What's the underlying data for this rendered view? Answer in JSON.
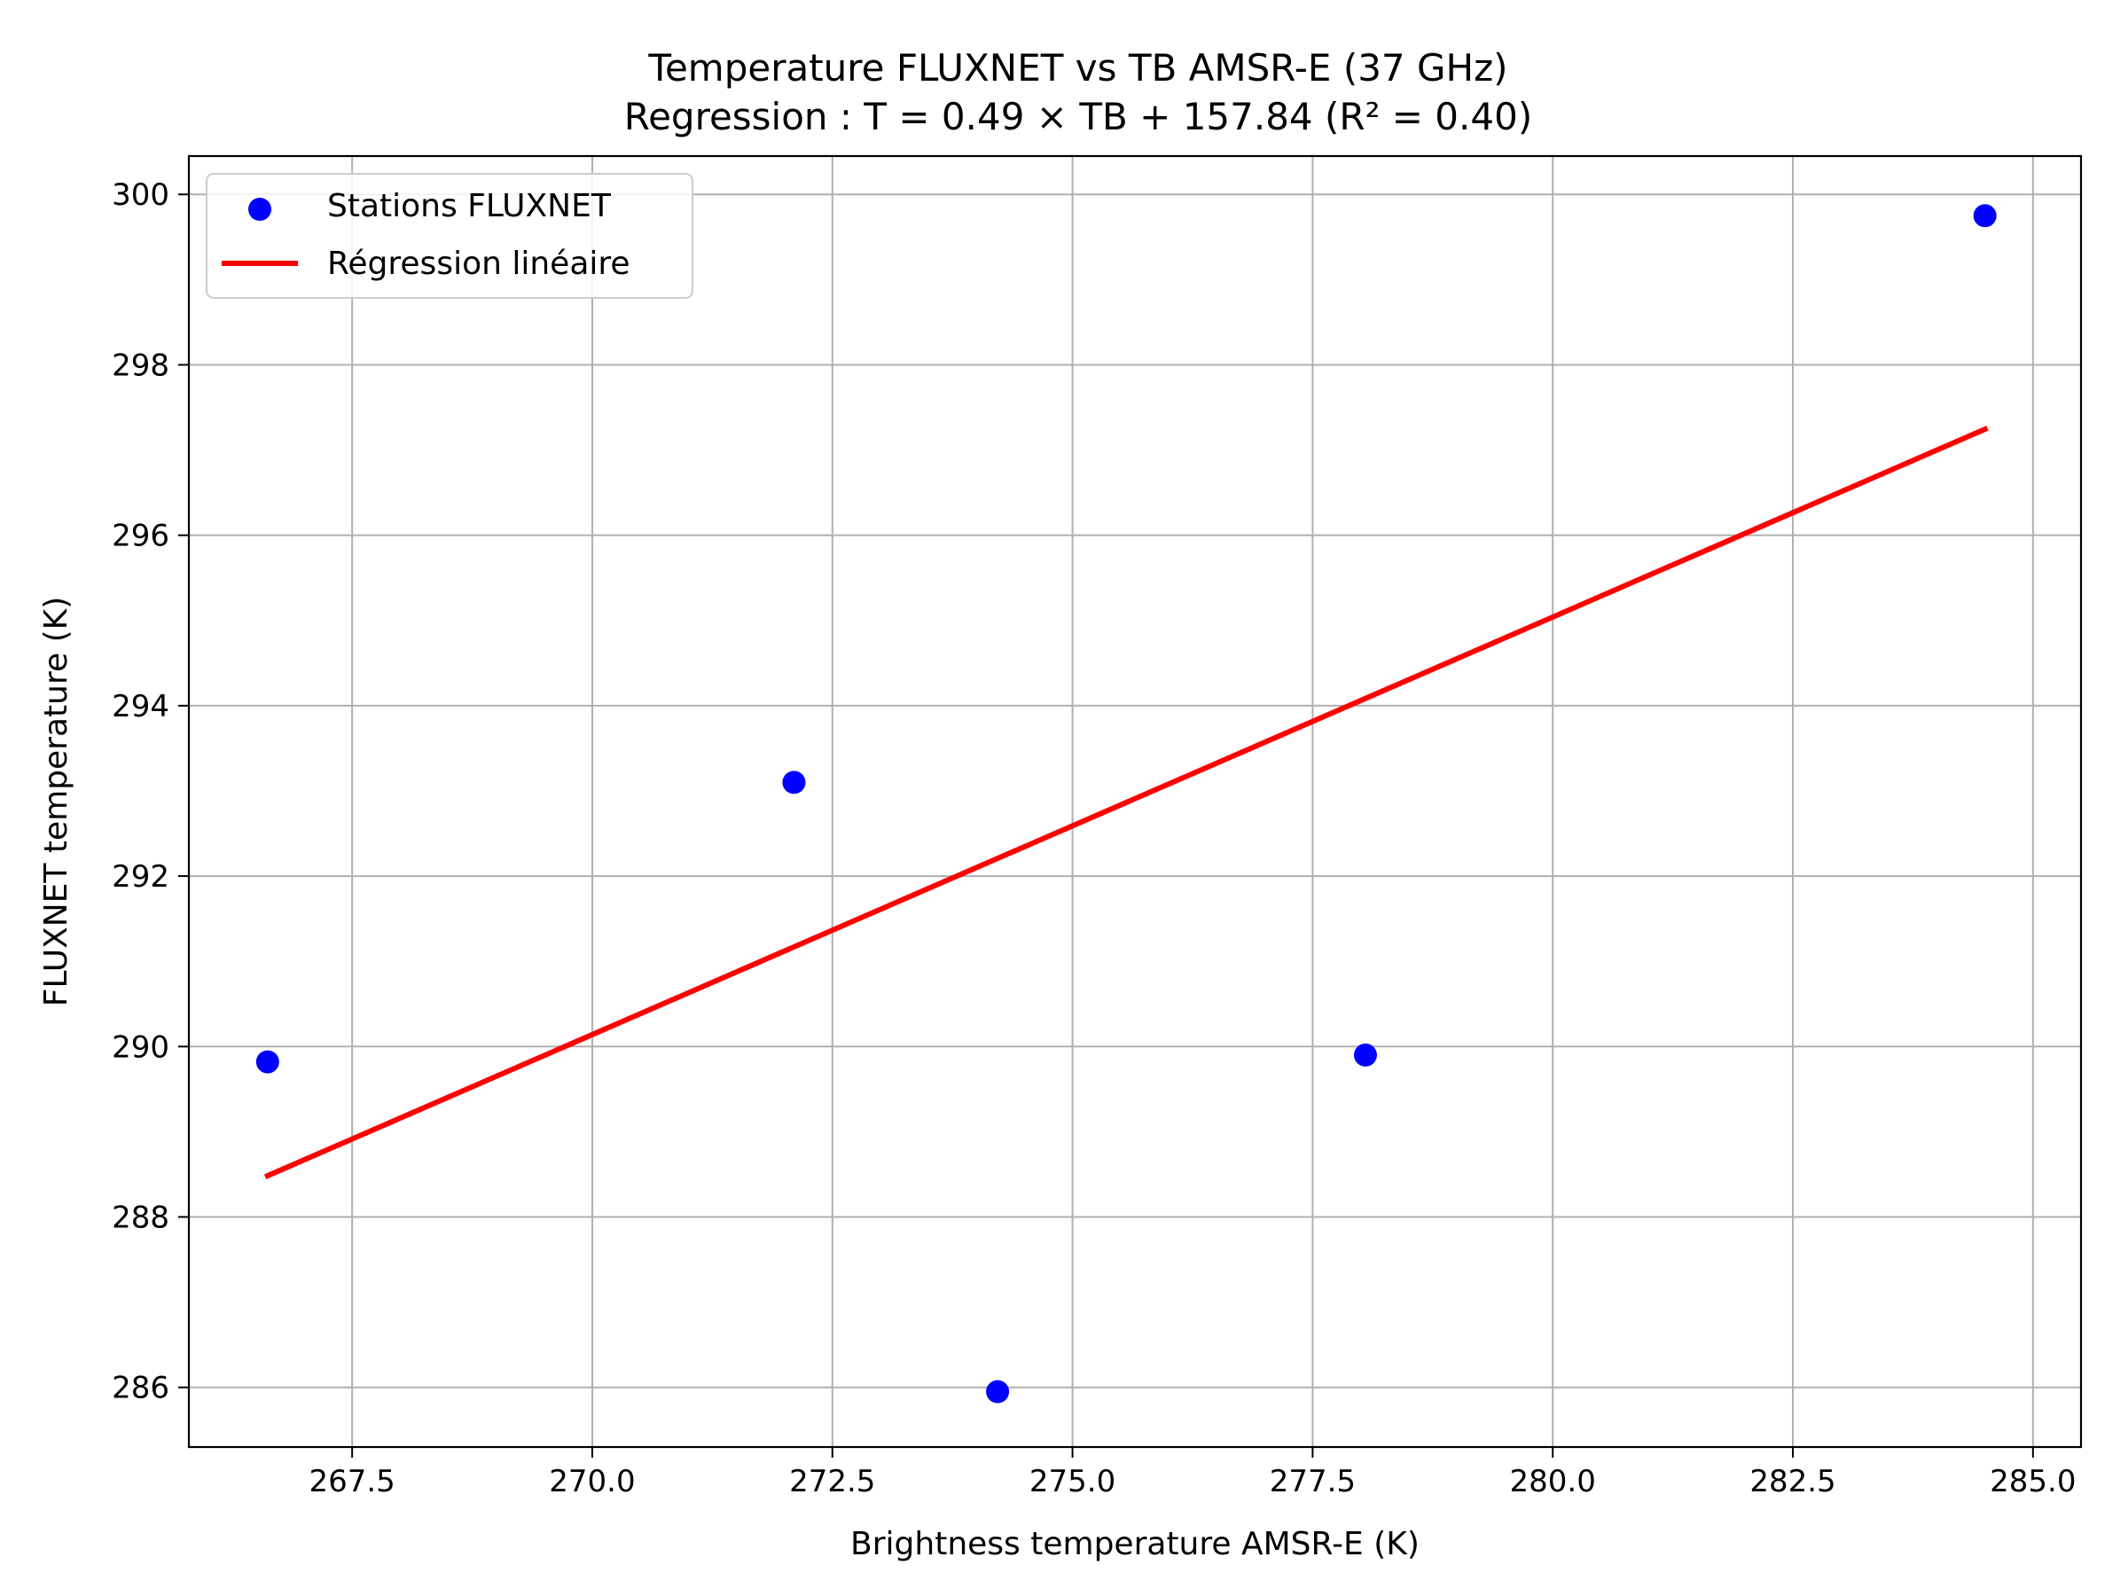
{
  "chart_data": {
    "type": "scatter",
    "title": "Temperature FLUXNET vs TB AMSR-E (37 GHz)",
    "subtitle": "Regression : T = 0.49 × TB + 157.84 (R² = 0.40)",
    "xlabel": "Brightness temperature AMSR-E (K)",
    "ylabel": "FLUXNET temperature (K)",
    "xlim": [
      265.8,
      285.5
    ],
    "ylim": [
      285.3,
      300.45
    ],
    "xticks": [
      267.5,
      270.0,
      272.5,
      275.0,
      277.5,
      280.0,
      282.5,
      285.0
    ],
    "xtick_labels": [
      "267.5",
      "270.0",
      "272.5",
      "275.0",
      "277.5",
      "280.0",
      "282.5",
      "285.0"
    ],
    "yticks": [
      286,
      288,
      290,
      292,
      294,
      296,
      298,
      300
    ],
    "ytick_labels": [
      "286",
      "288",
      "290",
      "292",
      "294",
      "296",
      "298",
      "300"
    ],
    "grid": true,
    "legend_position": "upper-left",
    "series": [
      {
        "name": "Stations FLUXNET",
        "kind": "scatter",
        "color": "#0000ff",
        "points": [
          {
            "x": 266.62,
            "y": 289.82
          },
          {
            "x": 272.1,
            "y": 293.1
          },
          {
            "x": 274.22,
            "y": 285.95
          },
          {
            "x": 278.05,
            "y": 289.9
          },
          {
            "x": 284.5,
            "y": 299.75
          }
        ]
      },
      {
        "name": "Régression linéaire",
        "kind": "line",
        "color": "#ff0000",
        "slope": 0.49,
        "intercept": 157.84,
        "x_range": [
          266.62,
          284.5
        ]
      }
    ],
    "colors": {
      "grid": "#b0b0b0",
      "axis": "#000000"
    }
  }
}
